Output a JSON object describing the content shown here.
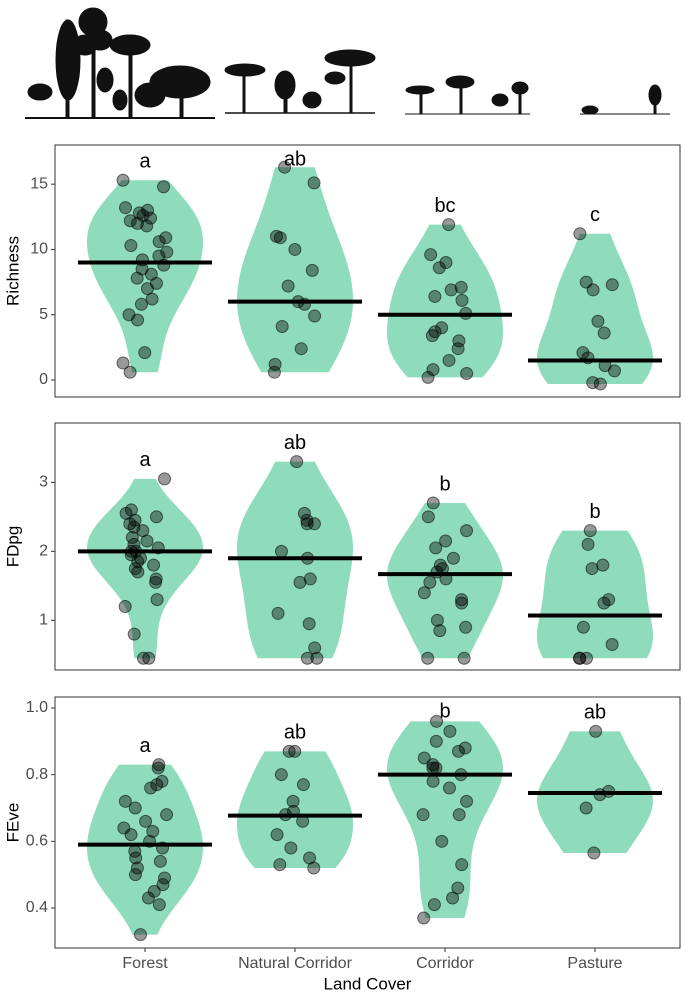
{
  "chart_data": [
    {
      "type": "violin",
      "y_label": "Richness",
      "ylim": [
        -1.3,
        18
      ],
      "yticks": [
        0,
        5,
        10,
        15
      ],
      "violin_color": "#8fdcbd",
      "point_color": "#000000",
      "median_color": "#000000",
      "labels": [
        "a",
        "ab",
        "bc",
        "c"
      ],
      "medians": [
        9,
        6,
        5,
        1.5
      ],
      "points": [
        [
          15.3,
          14.8,
          13.2,
          13,
          12.8,
          12.6,
          12.4,
          12.2,
          12,
          11.8,
          10.9,
          10.6,
          10.3,
          9.8,
          9.5,
          9.2,
          8.8,
          8.5,
          8.1,
          7.8,
          7.4,
          7,
          6.2,
          5.8,
          5,
          4.6,
          2.1,
          1.3,
          0.6
        ],
        [
          16.3,
          15.1,
          11,
          10.9,
          10,
          8.4,
          7.2,
          6,
          5.8,
          4.9,
          4.1,
          2.4,
          1.2,
          0.6
        ],
        [
          11.9,
          9.6,
          9,
          8.6,
          7.1,
          6.9,
          6.4,
          6.1,
          5.1,
          4,
          3.7,
          3.4,
          3,
          2.4,
          1.5,
          0.8,
          0.5,
          0.2
        ],
        [
          11.2,
          7.5,
          7.3,
          6.9,
          4.5,
          3.6,
          2.1,
          1.7,
          1.1,
          0.7,
          -0.2,
          -0.3
        ]
      ]
    },
    {
      "type": "violin",
      "y_label": "FDpg",
      "ylim": [
        0.28,
        3.86
      ],
      "yticks": [
        1,
        2,
        3
      ],
      "violin_color": "#8fdcbd",
      "point_color": "#000000",
      "median_color": "#000000",
      "labels": [
        "a",
        "ab",
        "b",
        "b"
      ],
      "medians": [
        2.0,
        1.9,
        1.67,
        1.07
      ],
      "points": [
        [
          3.05,
          2.6,
          2.55,
          2.5,
          2.45,
          2.4,
          2.35,
          2.3,
          2.2,
          2.15,
          2.1,
          2.05,
          2.0,
          2.0,
          1.95,
          1.9,
          1.85,
          1.8,
          1.75,
          1.7,
          1.6,
          1.55,
          1.3,
          1.2,
          0.8,
          0.45,
          0.45
        ],
        [
          3.3,
          2.55,
          2.45,
          2.4,
          2.4,
          2.0,
          1.9,
          1.6,
          1.55,
          1.1,
          0.95,
          0.6,
          0.45,
          0.45
        ],
        [
          2.7,
          2.5,
          2.3,
          2.15,
          2.05,
          1.9,
          1.8,
          1.75,
          1.7,
          1.6,
          1.55,
          1.4,
          1.3,
          1.25,
          1.0,
          0.9,
          0.85,
          0.45,
          0.45
        ],
        [
          2.3,
          2.1,
          1.8,
          1.75,
          1.3,
          1.25,
          0.9,
          0.65,
          0.45,
          0.45,
          0.45
        ]
      ]
    },
    {
      "type": "violin",
      "y_label": "FEve",
      "x_label": "Land Cover",
      "ylim": [
        0.28,
        1.033
      ],
      "yticks": [
        {
          "value": 0.4,
          "label": "0.4"
        },
        {
          "value": 0.6,
          "label": "0.6"
        },
        {
          "value": 0.8,
          "label": "0.8"
        },
        {
          "value": 1.0,
          "label": "1.0"
        }
      ],
      "categories": [
        "Forest",
        "Natural Corridor",
        "Corridor",
        "Pasture"
      ],
      "violin_color": "#8fdcbd",
      "point_color": "#000000",
      "median_color": "#000000",
      "labels": [
        "a",
        "ab",
        "b",
        "ab"
      ],
      "medians": [
        0.59,
        0.677,
        0.8,
        0.745
      ],
      "points": [
        [
          0.83,
          0.82,
          0.78,
          0.77,
          0.76,
          0.72,
          0.7,
          0.68,
          0.66,
          0.64,
          0.63,
          0.62,
          0.6,
          0.58,
          0.57,
          0.55,
          0.54,
          0.52,
          0.5,
          0.49,
          0.47,
          0.45,
          0.43,
          0.41,
          0.32
        ],
        [
          0.87,
          0.87,
          0.8,
          0.77,
          0.72,
          0.69,
          0.68,
          0.66,
          0.62,
          0.58,
          0.55,
          0.53,
          0.52
        ],
        [
          0.96,
          0.93,
          0.9,
          0.88,
          0.87,
          0.85,
          0.83,
          0.82,
          0.82,
          0.8,
          0.78,
          0.76,
          0.72,
          0.68,
          0.68,
          0.6,
          0.53,
          0.46,
          0.43,
          0.41,
          0.37
        ],
        [
          0.93,
          0.75,
          0.74,
          0.7,
          0.565
        ]
      ]
    }
  ]
}
